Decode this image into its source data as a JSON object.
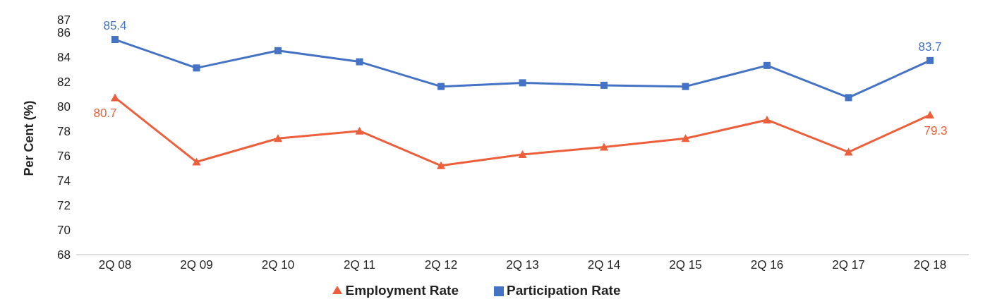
{
  "chart_data": {
    "type": "line",
    "ylabel": "Per Cent (%)",
    "categories": [
      "2Q 08",
      "2Q 09",
      "2Q 10",
      "2Q 11",
      "2Q 12",
      "2Q 13",
      "2Q 14",
      "2Q 15",
      "2Q 16",
      "2Q 17",
      "2Q 18"
    ],
    "series": [
      {
        "name": "Participation Rate",
        "color": "#4472c4",
        "marker": "square",
        "values": [
          85.4,
          83.1,
          84.5,
          83.6,
          81.6,
          81.9,
          81.7,
          81.6,
          83.3,
          80.7,
          83.7
        ],
        "value_labels": [
          "85.4",
          null,
          null,
          null,
          null,
          null,
          null,
          null,
          null,
          null,
          "83.7"
        ]
      },
      {
        "name": "Employment Rate",
        "color": "#ed5f3b",
        "marker": "triangle",
        "values": [
          80.7,
          75.5,
          77.4,
          78.0,
          75.2,
          76.1,
          76.7,
          77.4,
          78.9,
          76.3,
          79.3
        ],
        "value_labels": [
          "80.7",
          null,
          null,
          null,
          null,
          null,
          null,
          null,
          null,
          null,
          "79.3"
        ]
      }
    ],
    "ylim": [
      68,
      87
    ],
    "yticks": [
      68,
      70,
      72,
      74,
      76,
      78,
      80,
      82,
      84,
      86,
      87
    ],
    "grid": false,
    "legend": "bottom",
    "line_style": "solid"
  }
}
